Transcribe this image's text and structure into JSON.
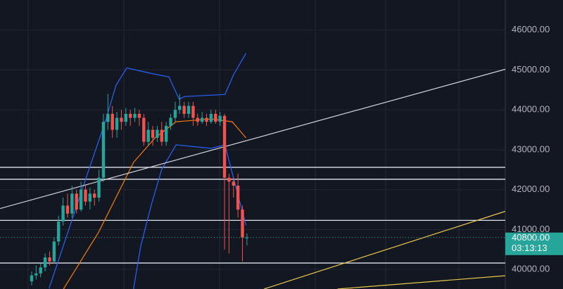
{
  "chart_data": {
    "type": "candlestick",
    "ylim": [
      39509,
      46754
    ],
    "xlim": [
      -7.06,
      105.6
    ],
    "yticks": [
      {
        "value": 40000,
        "label": "40000.00"
      },
      {
        "value": 41000,
        "label": "41000.00"
      },
      {
        "value": 42000,
        "label": "42000.00"
      },
      {
        "value": 43000,
        "label": "43000.00"
      },
      {
        "value": 44000,
        "label": "44000.00"
      },
      {
        "value": 45000,
        "label": "45000.00"
      },
      {
        "value": 46000,
        "label": "46000.00"
      }
    ],
    "grid": true,
    "up_color": "#26a69a",
    "down_color": "#ef5350",
    "open": [
      39700,
      39850,
      39900,
      40050,
      40300,
      40200,
      40700,
      41200,
      41600,
      41400,
      41900,
      41500,
      42000,
      41700,
      41900,
      41800,
      42300,
      43700,
      43900,
      43500,
      43800,
      43700,
      43900,
      43800,
      43900,
      43800,
      43200,
      43500,
      43300,
      43500,
      43200,
      43600,
      43800,
      44000,
      44100,
      43900,
      44100,
      43800,
      43700,
      43800,
      43700,
      43900,
      43700,
      43850,
      42300,
      42200,
      42100,
      41500,
      40800
    ],
    "close": [
      39850,
      39900,
      40050,
      40300,
      40200,
      40700,
      41200,
      41600,
      41400,
      41900,
      41500,
      42000,
      41700,
      41900,
      41800,
      42300,
      43700,
      43900,
      43500,
      43800,
      43700,
      43900,
      43800,
      43900,
      43800,
      43200,
      43500,
      43300,
      43500,
      43200,
      43600,
      43800,
      44000,
      44100,
      43900,
      44100,
      43800,
      43700,
      43800,
      43700,
      43900,
      43700,
      43850,
      42300,
      42200,
      42100,
      41500,
      40800,
      40800
    ],
    "high": [
      39950,
      40100,
      40150,
      40400,
      40450,
      40800,
      41350,
      41800,
      41900,
      42100,
      42000,
      42200,
      42100,
      42050,
      42000,
      42500,
      43900,
      44400,
      44100,
      43950,
      44000,
      44050,
      44000,
      44050,
      44000,
      43900,
      43700,
      43600,
      43600,
      43700,
      43700,
      43900,
      44200,
      44400,
      44200,
      44200,
      44200,
      43900,
      43950,
      43900,
      44000,
      44000,
      43950,
      43900,
      42400,
      42300,
      42400,
      41600,
      40900
    ],
    "low": [
      39600,
      39750,
      39800,
      39950,
      40100,
      40150,
      40600,
      41100,
      41300,
      41300,
      41400,
      41450,
      41600,
      41500,
      41600,
      41700,
      42200,
      43500,
      43300,
      43300,
      43500,
      43600,
      43600,
      43700,
      43600,
      43100,
      43100,
      43100,
      43200,
      43100,
      43100,
      43500,
      43700,
      43900,
      43800,
      43800,
      43600,
      43600,
      43650,
      43600,
      43650,
      43650,
      43600,
      40500,
      40400,
      41800,
      41300,
      40200,
      40600
    ],
    "lines": [
      {
        "color": "#2962ff",
        "x": [
          3.9,
          12.5,
          16.5,
          18.8,
          21.2,
          26.7,
          30.6,
          32.9,
          34,
          43.1,
          45,
          47.8
        ],
        "values": [
          39526,
          42421,
          43737,
          44614,
          45053,
          44912,
          44825,
          44263,
          44333,
          44386,
          44877,
          45421
        ]
      },
      {
        "color": "#2962ff",
        "x": [
          22.7,
          24.3,
          26.7,
          29,
          32.2,
          40,
          43.1,
          44.7,
          47.8
        ],
        "values": [
          39509,
          40579,
          41632,
          42509,
          43123,
          43035,
          43123,
          42421,
          41105
        ]
      },
      {
        "color": "#f57c00",
        "x": [
          7.1,
          14.9,
          19.6,
          22.7,
          27.5,
          32.2,
          40,
          44.7,
          47.8
        ],
        "values": [
          39509,
          40930,
          41982,
          42684,
          43298,
          43702,
          43772,
          43702,
          43298
        ]
      },
      {
        "color": "#d1d4dc",
        "x": [
          -7.06,
          105.6
        ],
        "values": [
          41526,
          45018
        ]
      },
      {
        "color": "#e6c84a",
        "x": [
          51.8,
          105.6
        ],
        "values": [
          39509,
          41456
        ]
      },
      {
        "color": "#e6c84a",
        "x": [
          68.2,
          105.6
        ],
        "values": [
          39509,
          39842
        ]
      }
    ],
    "hlines": {
      "color": "#e0e3eb",
      "values": [
        42560,
        42260,
        41230,
        40160
      ]
    },
    "last_price": {
      "value": 40800,
      "label": "40800.00"
    },
    "countdown": "03:13:13"
  }
}
